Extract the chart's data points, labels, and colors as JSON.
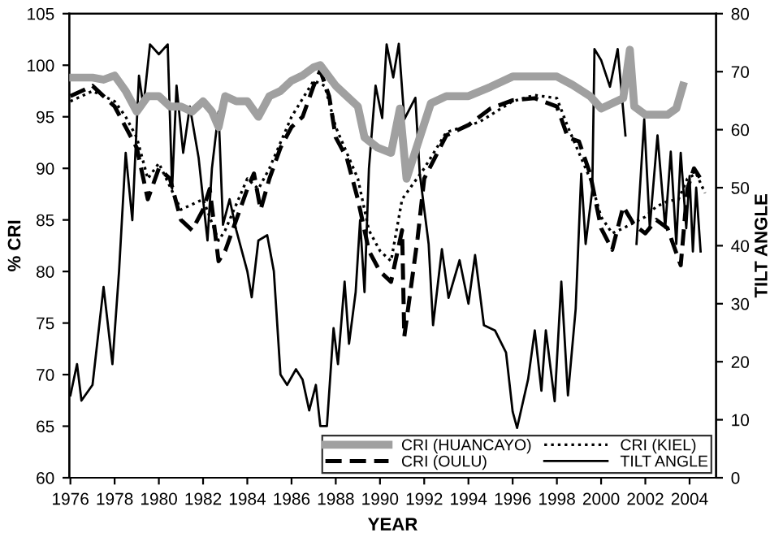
{
  "chart_data": {
    "type": "line",
    "xlabel": "YEAR",
    "ylabel": "% CRI",
    "y2label": "TILT ANGLE",
    "xlim": [
      1975.95,
      2005.2
    ],
    "xticks": [
      1976,
      1978,
      1980,
      1982,
      1984,
      1986,
      1988,
      1990,
      1992,
      1994,
      1996,
      1998,
      2000,
      2002,
      2004
    ],
    "ylim": [
      60,
      105
    ],
    "yticks": [
      60,
      65,
      70,
      75,
      80,
      85,
      90,
      95,
      100,
      105
    ],
    "y2lim": [
      0,
      80
    ],
    "y2ticks": [
      0,
      10,
      20,
      30,
      40,
      50,
      60,
      70,
      80
    ],
    "legend": "bottom right",
    "grid": false,
    "series": [
      {
        "name": "CRI (HUANCAYO)",
        "color": "#a0a0a0",
        "line_style": "solid",
        "x": [
          1976,
          1977,
          1977.5,
          1978,
          1978.5,
          1979,
          1979.5,
          1980,
          1980.5,
          1981,
          1981.5,
          1982,
          1982.4,
          1982.7,
          1983,
          1983.5,
          1984,
          1984.5,
          1985,
          1985.5,
          1986,
          1986.5,
          1987,
          1987.3,
          1988,
          1988.5,
          1989,
          1989.3,
          1989.9,
          1990.5,
          1990.9,
          1991.2,
          1991.8,
          1992.3,
          1993,
          1994,
          1995,
          1996,
          1997,
          1998,
          1998.7,
          1999.5,
          2000,
          2001,
          2001.3,
          2001.5,
          2002,
          2003,
          2003.4,
          2003.7
        ],
        "values": [
          98.8,
          98.8,
          98.6,
          99,
          97.5,
          95.5,
          97,
          97,
          96,
          96,
          95.5,
          96.5,
          95.5,
          94,
          97,
          96.5,
          96.5,
          95,
          97,
          97.5,
          98.5,
          99,
          99.8,
          100,
          98,
          97,
          96,
          93,
          92,
          91.5,
          95.8,
          89,
          93,
          96.3,
          97,
          97,
          97.9,
          98.9,
          98.9,
          98.9,
          98.1,
          97,
          95.8,
          96.8,
          101.5,
          96,
          95.2,
          95.2,
          95.8,
          98
        ]
      },
      {
        "name": "CRI (OULU)",
        "color": "#000000",
        "line_style": "dashed",
        "x": [
          1976,
          1977,
          1977.5,
          1978,
          1978.5,
          1979,
          1979.5,
          1980,
          1980.5,
          1981,
          1981.5,
          1982,
          1982.3,
          1982.7,
          1983,
          1983.5,
          1984,
          1984.3,
          1984.6,
          1985,
          1985.5,
          1986,
          1986.5,
          1987,
          1987.3,
          1987.7,
          1988,
          1988.5,
          1989,
          1989.5,
          1990,
          1990.5,
          1991,
          1991.1,
          1991.7,
          1992,
          1993,
          1994,
          1995,
          1996,
          1997,
          1998,
          1998.5,
          1999,
          1999.5,
          2000,
          2000.5,
          2001,
          2001.5,
          2002,
          2002.5,
          2003,
          2003.6,
          2003.9,
          2004.2,
          2004.5
        ],
        "values": [
          97,
          98,
          97,
          96,
          94,
          92,
          87,
          90,
          89,
          85,
          84,
          86,
          88,
          81,
          82,
          85,
          88,
          89.5,
          86,
          89,
          92,
          94,
          95,
          98,
          99.5,
          97,
          93,
          91,
          87,
          82,
          80,
          79,
          84,
          73.7,
          83.2,
          89,
          93.2,
          94.2,
          95.8,
          96.6,
          96.8,
          96,
          93,
          92.6,
          89.5,
          84.2,
          82.1,
          86.3,
          84.5,
          83.7,
          85,
          84.2,
          80.6,
          88,
          90,
          89
        ]
      },
      {
        "name": "CRI (KIEL)",
        "color": "#000000",
        "line_style": "dotted",
        "x": [
          1976,
          1977,
          1978,
          1978.5,
          1979,
          1979.5,
          1980,
          1981,
          1982,
          1982.7,
          1983,
          1984,
          1984.5,
          1985,
          1986,
          1987,
          1987.5,
          1988,
          1989,
          1989.5,
          1990,
          1990.5,
          1991,
          1992,
          1993,
          1994.5,
          1996,
          1997,
          1998,
          1998.5,
          1999,
          1999.5,
          2000,
          2000.5,
          2001,
          2002,
          2002.5,
          2003,
          2003.5,
          2003.9,
          2004.3,
          2004.7
        ],
        "values": [
          96.5,
          97.5,
          96.5,
          95,
          93,
          89,
          90.5,
          86,
          87,
          83,
          84,
          89,
          88,
          90,
          95,
          98.5,
          98,
          94,
          89,
          84,
          82,
          81,
          87,
          90,
          93.5,
          94.5,
          96.5,
          97.1,
          96.8,
          94,
          91.5,
          89,
          85.3,
          83.7,
          84.2,
          85.3,
          86.3,
          86.8,
          87,
          89,
          89.5,
          87.6
        ]
      },
      {
        "name": "TILT ANGLE",
        "color": "#000000",
        "line_style": "solid",
        "axis": "y2",
        "x": [
          1976,
          1976.3,
          1976.5,
          1977,
          1977.5,
          1977.9,
          1978.2,
          1978.5,
          1978.8,
          1979.1,
          1979.3,
          1979.6,
          1980,
          1980.4,
          1980.6,
          1980.8,
          1981.1,
          1981.4,
          1981.8,
          1982.1,
          1982.2,
          1982.4,
          1982.7,
          1982.9,
          1983.2,
          1983.5,
          1984,
          1984.2,
          1984.5,
          1984.9,
          1985.2,
          1985.5,
          1985.8,
          1986.2,
          1986.5,
          1986.8,
          1987.1,
          1987.3,
          1987.6,
          1987.9,
          1988.1,
          1988.4,
          1988.6,
          1988.9,
          1989.1,
          1989.3,
          1989.5,
          1989.8,
          1990.1,
          1990.3,
          1990.6,
          1990.85,
          1991.1,
          1991.6,
          1991.8,
          1992.2,
          1992.4,
          1992.8,
          1993.1,
          1993.6,
          1994,
          1994.3,
          1994.7,
          1995.2,
          1995.7,
          1996,
          1996.2,
          1996.7,
          1997,
          1997.3,
          1997.5,
          1997.9,
          1998.2,
          1998.5,
          1998.85,
          1999.1,
          1999.3,
          1999.6,
          1999.7,
          2000,
          2000.4,
          2000.75,
          2001.1,
          2001.35,
          2001.6,
          2001.95,
          2002.2,
          2002.55,
          2002.9,
          2003.15,
          2003.4,
          2003.6,
          2003.85,
          2004,
          2004.15,
          2004.3,
          2004.5
        ],
        "values": [
          14.2,
          19.6,
          13.3,
          16,
          32.9,
          19.6,
          35.6,
          56,
          44.4,
          69.3,
          64,
          74.7,
          73,
          74.7,
          49.8,
          67.6,
          56,
          64,
          55.1,
          44.4,
          40.9,
          53.3,
          63.1,
          43.6,
          48,
          42.7,
          35.6,
          31.1,
          40.9,
          41.8,
          35.6,
          17.8,
          16,
          18.7,
          16.9,
          11.6,
          16,
          8.9,
          8.9,
          25.8,
          19.6,
          33.8,
          23.1,
          32,
          44.4,
          32,
          53.3,
          67.6,
          62,
          74.7,
          69,
          74.8,
          61.8,
          65.5,
          52.4,
          40.3,
          26.3,
          39.4,
          31,
          37.5,
          30,
          38.4,
          26.3,
          25.4,
          21.6,
          11.4,
          8.6,
          17,
          25.4,
          15,
          25.4,
          13.2,
          33.8,
          14.2,
          29.1,
          52.4,
          40.3,
          49.6,
          73.9,
          72,
          67.4,
          73.9,
          59,
          null,
          40.3,
          61.8,
          43.1,
          59,
          43.1,
          56.2,
          40.3,
          56,
          43,
          52,
          39,
          50,
          39
        ]
      }
    ]
  }
}
